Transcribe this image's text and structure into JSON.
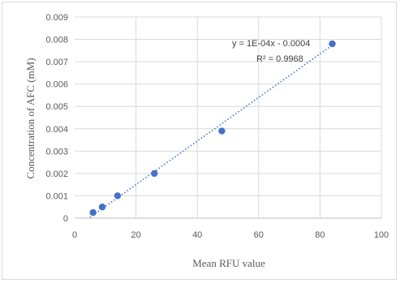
{
  "chart_data": {
    "type": "scatter",
    "xlabel": "Mean RFU value",
    "ylabel": "Concentration of AFC (mM)",
    "xlim": [
      0,
      100
    ],
    "ylim": [
      0,
      0.009
    ],
    "x_ticks": [
      "0",
      "20",
      "40",
      "60",
      "80",
      "100"
    ],
    "y_ticks": [
      "0",
      "0.001",
      "0.002",
      "0.003",
      "0.004",
      "0.005",
      "0.006",
      "0.007",
      "0.008",
      "0.009"
    ],
    "grid": true,
    "points": [
      {
        "x": 6,
        "y": 0.00025
      },
      {
        "x": 9,
        "y": 0.0005
      },
      {
        "x": 14,
        "y": 0.001
      },
      {
        "x": 26,
        "y": 0.002
      },
      {
        "x": 48,
        "y": 0.0039
      },
      {
        "x": 84,
        "y": 0.0078
      }
    ],
    "trendline": {
      "style": "dotted",
      "x_range": [
        5,
        84
      ],
      "slope": 9.75e-05,
      "intercept": -0.00045,
      "equation": "y = 1E-04x - 0.0004",
      "r_squared": "R² = 0.9968"
    },
    "colors": {
      "marker": "#4472c4",
      "trendline": "#4472c4",
      "grid": "#d9d9d9",
      "axis": "#bfbfbf"
    }
  }
}
